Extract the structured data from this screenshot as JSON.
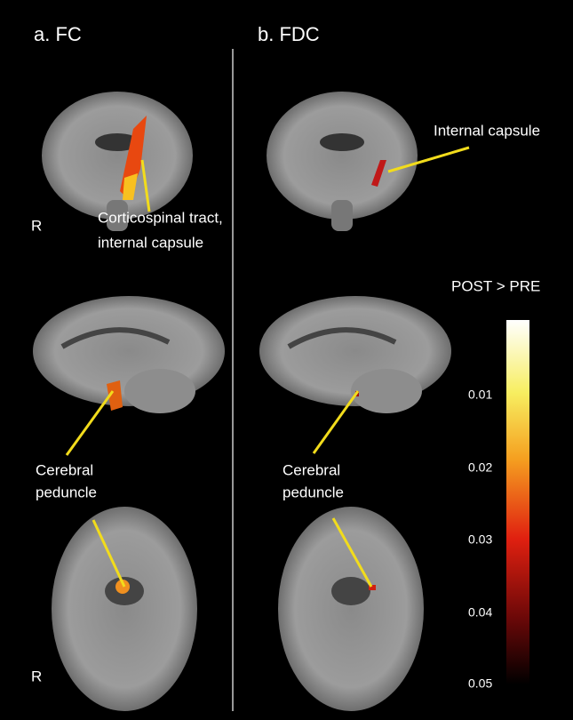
{
  "panels": [
    {
      "title": "a. FC",
      "orientation_labels": [
        "R",
        "R"
      ],
      "annotations": [
        {
          "lines": [
            "Corticospinal tract,",
            "internal capsule"
          ]
        },
        {
          "lines": [
            "Cerebral",
            "peduncle"
          ]
        }
      ]
    },
    {
      "title": "b. FDC",
      "annotations": [
        {
          "lines": [
            "Internal capsule"
          ]
        },
        {
          "lines": [
            "Cerebral",
            "peduncle"
          ]
        }
      ]
    }
  ],
  "colorbar": {
    "title": "POST > PRE",
    "ticks": [
      "0.01",
      "0.02",
      "0.03",
      "0.04",
      "0.05"
    ]
  }
}
